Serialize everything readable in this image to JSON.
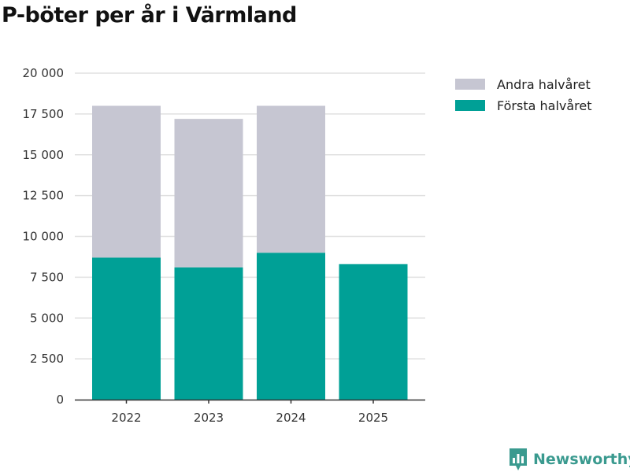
{
  "chart_data": {
    "type": "bar",
    "stacked": true,
    "title": "P-böter per år i Värmland",
    "categories": [
      "2022",
      "2023",
      "2024",
      "2025"
    ],
    "series": [
      {
        "name": "Första halvåret",
        "color": "#00a096",
        "values": [
          8700,
          8100,
          9000,
          8300
        ]
      },
      {
        "name": "Andra halvåret",
        "color": "#c6c6d2",
        "values": [
          9300,
          9100,
          9000,
          null
        ]
      }
    ],
    "legend_order": [
      "Andra halvåret",
      "Första halvåret"
    ],
    "yticks": [
      0,
      2500,
      5000,
      7500,
      10000,
      12500,
      15000,
      17500,
      20000
    ],
    "ytick_labels": [
      "0",
      "2 500",
      "5 000",
      "7 500",
      "10 000",
      "12 500",
      "15 000",
      "17 500",
      "20 000"
    ],
    "ylim": [
      0,
      20000
    ],
    "xlabel": "",
    "ylabel": "",
    "grid": true,
    "legend_position": "top-right"
  },
  "brand": {
    "name": "Newsworthy",
    "logo_icon": "newsworthy-logo-icon"
  }
}
